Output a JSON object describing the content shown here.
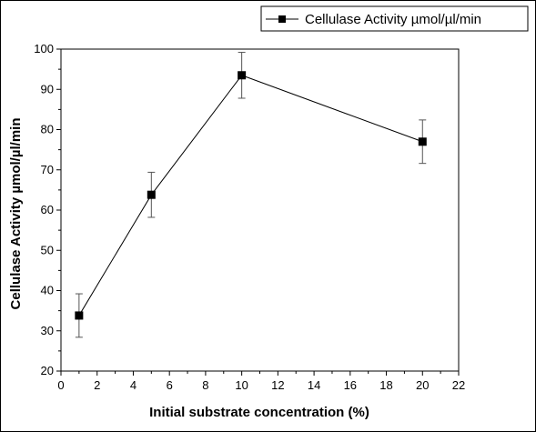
{
  "chart_data": {
    "type": "line",
    "title": "",
    "xlabel": "Initial substrate concentration (%)",
    "ylabel": "Cellulase Activity µmol/µl/min",
    "xlim": [
      0,
      22
    ],
    "ylim": [
      20,
      100
    ],
    "xticks": [
      0,
      2,
      4,
      6,
      8,
      10,
      12,
      14,
      16,
      18,
      20,
      22
    ],
    "yticks": [
      20,
      30,
      40,
      50,
      60,
      70,
      80,
      90,
      100
    ],
    "grid": false,
    "legend_position": "top-right",
    "series": [
      {
        "name": "Cellulase Activity µmol/µl/min",
        "marker": "square",
        "color": "#000000",
        "x": [
          1,
          5,
          10,
          20
        ],
        "y": [
          33.8,
          63.8,
          93.5,
          77.0
        ],
        "error": [
          5.4,
          5.6,
          5.7,
          5.4
        ]
      }
    ]
  }
}
